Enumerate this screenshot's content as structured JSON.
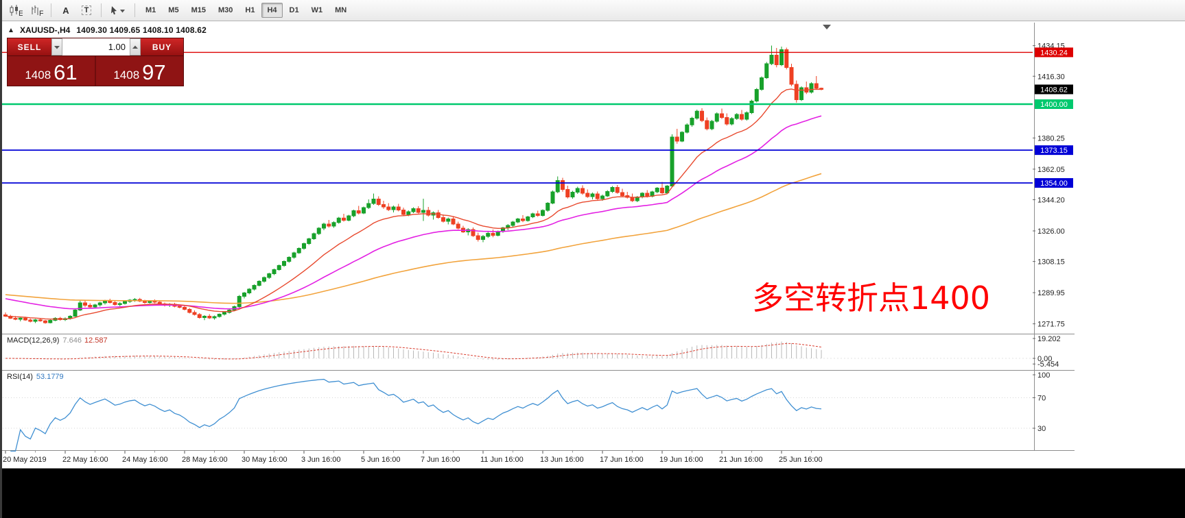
{
  "toolbar": {
    "icons": [
      {
        "name": "candlestick-chart-icon"
      },
      {
        "name": "bar-chart-grid-icon"
      },
      {
        "name": "text-annotation-icon"
      },
      {
        "name": "text-box-icon"
      },
      {
        "name": "draw-tools-icon"
      }
    ],
    "timeframes": [
      "M1",
      "M5",
      "M15",
      "M30",
      "H1",
      "H4",
      "D1",
      "W1",
      "MN"
    ],
    "active_timeframe": "H4"
  },
  "chart": {
    "title": {
      "symbol_period": "XAUUSD-,H4",
      "ohlc": "1409.30 1409.65 1408.10 1408.62"
    },
    "trade_panel": {
      "sell_label": "SELL",
      "buy_label": "BUY",
      "volume": "1.00",
      "sell_price": "1408",
      "sell_price_big": "61",
      "buy_price": "1408",
      "buy_price_big": "97"
    },
    "annotation": "多空转折点1400",
    "levels": [
      {
        "price": 1430.24,
        "label": "1430.24",
        "color": "#dd0000",
        "line_width": 1.4,
        "type": "resistance-line"
      },
      {
        "price": 1408.62,
        "label": "1408.62",
        "color": "#000000",
        "line_width": 0,
        "type": "current-price"
      },
      {
        "price": 1400.0,
        "label": "1400.00",
        "color": "#00c96e",
        "line_width": 2.4,
        "type": "pivot-line"
      },
      {
        "price": 1373.15,
        "label": "1373.15",
        "color": "#0000d6",
        "line_width": 1.8,
        "type": "support-line"
      },
      {
        "price": 1354.0,
        "label": "1354.00",
        "color": "#0000d6",
        "line_width": 1.8,
        "type": "support-line"
      }
    ]
  },
  "macd": {
    "label": "MACD(12,26,9)",
    "value_main": "7.646",
    "value_signal": "12.587",
    "scale": [
      {
        "v": 19.202,
        "t": "19.202"
      },
      {
        "v": 0,
        "t": "0.00"
      },
      {
        "v": -5.454,
        "t": "-5.454"
      }
    ]
  },
  "rsi": {
    "label": "RSI(14)",
    "value": "53.1779",
    "scale": [
      {
        "v": 100,
        "t": "100"
      },
      {
        "v": 70,
        "t": "70"
      },
      {
        "v": 30,
        "t": "30"
      }
    ]
  },
  "colors": {
    "up": "#18a12b",
    "down": "#ee4023",
    "ma_fast": "#e8492e",
    "ma_mid": "#e320e3",
    "ma_slow": "#f2a33c",
    "macd_hist": "#b8b8b8",
    "macd_signal": "#d93a2b",
    "rsi_line": "#3f8fd2",
    "annotation": "#ff0000"
  },
  "chart_data": {
    "type": "candlestick",
    "symbol": "XAUUSD-",
    "period": "H4",
    "y_axis_ticks": [
      1434.15,
      1416.3,
      1380.25,
      1362.05,
      1344.2,
      1326.0,
      1308.15,
      1289.95,
      1271.75
    ],
    "time_labels": [
      {
        "t": "20 May 2019",
        "bar": 0
      },
      {
        "t": "22 May 16:00",
        "bar": 12
      },
      {
        "t": "24 May 16:00",
        "bar": 24
      },
      {
        "t": "28 May 16:00",
        "bar": 36
      },
      {
        "t": "30 May 16:00",
        "bar": 48
      },
      {
        "t": "3 Jun 16:00",
        "bar": 60
      },
      {
        "t": "5 Jun 16:00",
        "bar": 72
      },
      {
        "t": "7 Jun 16:00",
        "bar": 84
      },
      {
        "t": "11 Jun 16:00",
        "bar": 96
      },
      {
        "t": "13 Jun 16:00",
        "bar": 108
      },
      {
        "t": "17 Jun 16:00",
        "bar": 120
      },
      {
        "t": "19 Jun 16:00",
        "bar": 132
      },
      {
        "t": "21 Jun 16:00",
        "bar": 144
      },
      {
        "t": "25 Jun 16:00",
        "bar": 156
      }
    ],
    "candles": [
      [
        1277.0,
        1278.4,
        1275.8,
        1276.2
      ],
      [
        1276.2,
        1277.0,
        1274.6,
        1275.0
      ],
      [
        1275.0,
        1276.3,
        1273.9,
        1274.4
      ],
      [
        1274.4,
        1275.5,
        1273.2,
        1275.1
      ],
      [
        1275.1,
        1275.9,
        1273.5,
        1274.0
      ],
      [
        1274.0,
        1274.8,
        1272.6,
        1273.2
      ],
      [
        1273.2,
        1274.6,
        1272.2,
        1274.1
      ],
      [
        1274.1,
        1275.2,
        1273.0,
        1273.5
      ],
      [
        1273.5,
        1274.0,
        1271.8,
        1272.4
      ],
      [
        1272.4,
        1274.3,
        1272.0,
        1273.8
      ],
      [
        1273.8,
        1275.6,
        1273.3,
        1275.0
      ],
      [
        1275.0,
        1275.8,
        1273.6,
        1274.2
      ],
      [
        1274.2,
        1275.5,
        1273.4,
        1274.8
      ],
      [
        1274.8,
        1276.8,
        1274.2,
        1276.2
      ],
      [
        1276.2,
        1280.5,
        1275.8,
        1279.8
      ],
      [
        1279.8,
        1285.2,
        1279.2,
        1284.0
      ],
      [
        1284.0,
        1285.6,
        1281.5,
        1282.6
      ],
      [
        1282.6,
        1283.8,
        1280.9,
        1281.6
      ],
      [
        1281.6,
        1283.4,
        1280.6,
        1282.8
      ],
      [
        1282.8,
        1284.6,
        1281.8,
        1284.0
      ],
      [
        1284.0,
        1285.8,
        1283.0,
        1285.2
      ],
      [
        1285.2,
        1286.4,
        1283.6,
        1284.2
      ],
      [
        1284.2,
        1285.0,
        1282.4,
        1283.0
      ],
      [
        1283.0,
        1284.4,
        1282.0,
        1283.6
      ],
      [
        1283.6,
        1285.4,
        1283.0,
        1284.8
      ],
      [
        1284.8,
        1286.2,
        1284.0,
        1285.6
      ],
      [
        1285.6,
        1286.8,
        1284.6,
        1286.0
      ],
      [
        1286.0,
        1286.9,
        1284.4,
        1285.0
      ],
      [
        1285.0,
        1285.8,
        1283.4,
        1284.2
      ],
      [
        1284.2,
        1285.6,
        1283.6,
        1285.0
      ],
      [
        1285.0,
        1286.0,
        1283.8,
        1284.4
      ],
      [
        1284.4,
        1285.2,
        1282.8,
        1283.4
      ],
      [
        1283.4,
        1284.2,
        1281.9,
        1282.6
      ],
      [
        1282.6,
        1283.8,
        1281.6,
        1283.2
      ],
      [
        1283.2,
        1284.0,
        1281.4,
        1282.0
      ],
      [
        1282.0,
        1283.0,
        1280.8,
        1281.4
      ],
      [
        1281.4,
        1282.2,
        1279.6,
        1280.2
      ],
      [
        1280.2,
        1281.0,
        1277.8,
        1278.4
      ],
      [
        1278.4,
        1279.6,
        1276.6,
        1277.2
      ],
      [
        1277.2,
        1278.0,
        1274.8,
        1275.4
      ],
      [
        1275.4,
        1276.8,
        1273.9,
        1276.2
      ],
      [
        1276.2,
        1277.4,
        1274.6,
        1275.2
      ],
      [
        1275.2,
        1276.6,
        1274.2,
        1276.0
      ],
      [
        1276.0,
        1277.8,
        1275.4,
        1277.4
      ],
      [
        1277.4,
        1279.0,
        1276.6,
        1278.4
      ],
      [
        1278.4,
        1280.2,
        1277.8,
        1279.8
      ],
      [
        1279.8,
        1282.4,
        1279.2,
        1281.8
      ],
      [
        1281.8,
        1288.6,
        1281.2,
        1287.8
      ],
      [
        1287.8,
        1290.4,
        1286.6,
        1289.8
      ],
      [
        1289.8,
        1292.6,
        1289.0,
        1292.0
      ],
      [
        1292.0,
        1294.8,
        1291.2,
        1294.2
      ],
      [
        1294.2,
        1297.2,
        1293.6,
        1296.6
      ],
      [
        1296.6,
        1299.4,
        1295.8,
        1298.8
      ],
      [
        1298.8,
        1301.6,
        1298.0,
        1301.0
      ],
      [
        1301.0,
        1304.0,
        1300.2,
        1303.4
      ],
      [
        1303.4,
        1306.4,
        1302.8,
        1305.8
      ],
      [
        1305.8,
        1308.8,
        1305.0,
        1308.2
      ],
      [
        1308.2,
        1311.2,
        1307.4,
        1310.6
      ],
      [
        1310.6,
        1313.8,
        1309.8,
        1313.2
      ],
      [
        1313.2,
        1316.4,
        1312.6,
        1315.8
      ],
      [
        1315.8,
        1319.2,
        1315.0,
        1318.6
      ],
      [
        1318.6,
        1322.0,
        1317.8,
        1321.4
      ],
      [
        1321.4,
        1325.0,
        1320.8,
        1324.4
      ],
      [
        1324.4,
        1328.2,
        1323.6,
        1327.6
      ],
      [
        1327.6,
        1330.8,
        1326.4,
        1330.0
      ],
      [
        1330.0,
        1332.4,
        1327.9,
        1328.8
      ],
      [
        1328.8,
        1331.6,
        1327.8,
        1330.9
      ],
      [
        1330.9,
        1334.2,
        1330.2,
        1333.5
      ],
      [
        1333.5,
        1336.0,
        1331.4,
        1332.2
      ],
      [
        1332.2,
        1335.4,
        1331.6,
        1334.8
      ],
      [
        1334.8,
        1338.4,
        1334.0,
        1337.8
      ],
      [
        1337.8,
        1340.6,
        1335.6,
        1336.4
      ],
      [
        1336.4,
        1340.2,
        1335.8,
        1339.6
      ],
      [
        1339.6,
        1344.4,
        1338.8,
        1342.0
      ],
      [
        1342.0,
        1347.8,
        1341.2,
        1344.6
      ],
      [
        1344.6,
        1346.2,
        1340.6,
        1341.4
      ],
      [
        1341.4,
        1343.6,
        1338.9,
        1340.0
      ],
      [
        1340.0,
        1342.2,
        1337.6,
        1338.4
      ],
      [
        1338.4,
        1340.8,
        1336.8,
        1340.0
      ],
      [
        1340.0,
        1341.8,
        1337.4,
        1338.2
      ],
      [
        1338.2,
        1339.6,
        1334.9,
        1335.6
      ],
      [
        1335.6,
        1338.0,
        1334.6,
        1337.2
      ],
      [
        1337.2,
        1339.8,
        1336.4,
        1339.0
      ],
      [
        1339.0,
        1340.4,
        1336.1,
        1336.8
      ],
      [
        1336.8,
        1344.8,
        1331.8,
        1338.0
      ],
      [
        1338.0,
        1340.0,
        1334.4,
        1335.2
      ],
      [
        1335.2,
        1337.4,
        1332.6,
        1336.6
      ],
      [
        1336.6,
        1338.2,
        1333.1,
        1333.8
      ],
      [
        1333.8,
        1335.6,
        1330.9,
        1331.6
      ],
      [
        1331.6,
        1333.8,
        1329.8,
        1333.0
      ],
      [
        1333.0,
        1334.2,
        1329.4,
        1330.0
      ],
      [
        1330.0,
        1331.4,
        1326.9,
        1327.6
      ],
      [
        1327.6,
        1329.0,
        1324.8,
        1325.4
      ],
      [
        1325.4,
        1327.6,
        1323.4,
        1326.8
      ],
      [
        1326.8,
        1328.0,
        1322.5,
        1323.2
      ],
      [
        1323.2,
        1325.0,
        1319.8,
        1321.0
      ],
      [
        1321.0,
        1323.6,
        1319.4,
        1322.8
      ],
      [
        1322.8,
        1325.4,
        1321.9,
        1324.6
      ],
      [
        1324.6,
        1326.8,
        1322.3,
        1323.4
      ],
      [
        1323.4,
        1326.2,
        1322.8,
        1325.6
      ],
      [
        1325.6,
        1328.4,
        1324.9,
        1327.8
      ],
      [
        1327.8,
        1330.0,
        1326.4,
        1329.2
      ],
      [
        1329.2,
        1331.8,
        1328.4,
        1331.2
      ],
      [
        1331.2,
        1333.6,
        1330.5,
        1333.0
      ],
      [
        1333.0,
        1335.2,
        1331.1,
        1332.0
      ],
      [
        1332.0,
        1334.8,
        1331.4,
        1334.2
      ],
      [
        1334.2,
        1336.6,
        1333.5,
        1336.0
      ],
      [
        1336.0,
        1337.8,
        1334.2,
        1335.0
      ],
      [
        1335.0,
        1338.6,
        1334.4,
        1338.0
      ],
      [
        1338.0,
        1342.8,
        1337.2,
        1342.2
      ],
      [
        1342.2,
        1349.6,
        1341.6,
        1348.8
      ],
      [
        1348.8,
        1357.8,
        1348.0,
        1355.4
      ],
      [
        1355.4,
        1357.0,
        1348.9,
        1350.2
      ],
      [
        1350.2,
        1352.4,
        1344.9,
        1345.8
      ],
      [
        1345.8,
        1349.4,
        1344.8,
        1348.6
      ],
      [
        1348.6,
        1351.8,
        1347.6,
        1350.8
      ],
      [
        1350.8,
        1352.6,
        1347.1,
        1348.0
      ],
      [
        1348.0,
        1350.2,
        1345.3,
        1346.0
      ],
      [
        1346.0,
        1348.4,
        1344.4,
        1347.6
      ],
      [
        1347.6,
        1349.0,
        1344.1,
        1344.8
      ],
      [
        1344.8,
        1347.2,
        1343.6,
        1346.4
      ],
      [
        1346.4,
        1349.8,
        1345.8,
        1349.0
      ],
      [
        1349.0,
        1352.2,
        1348.2,
        1351.4
      ],
      [
        1351.4,
        1352.8,
        1347.7,
        1348.4
      ],
      [
        1348.4,
        1350.6,
        1345.9,
        1346.6
      ],
      [
        1346.6,
        1348.8,
        1344.9,
        1345.6
      ],
      [
        1345.6,
        1347.8,
        1342.9,
        1343.6
      ],
      [
        1343.6,
        1346.4,
        1342.8,
        1345.8
      ],
      [
        1345.8,
        1348.6,
        1345.0,
        1348.0
      ],
      [
        1348.0,
        1349.8,
        1345.5,
        1346.2
      ],
      [
        1346.2,
        1349.4,
        1345.6,
        1348.8
      ],
      [
        1348.8,
        1351.6,
        1348.0,
        1351.0
      ],
      [
        1351.0,
        1354.6,
        1347.5,
        1348.2
      ],
      [
        1348.2,
        1352.8,
        1347.6,
        1352.2
      ],
      [
        1352.2,
        1382.4,
        1351.6,
        1380.8
      ],
      [
        1380.8,
        1385.6,
        1376.9,
        1378.4
      ],
      [
        1378.4,
        1384.2,
        1377.8,
        1383.6
      ],
      [
        1383.6,
        1388.8,
        1382.9,
        1387.9
      ],
      [
        1387.9,
        1392.6,
        1386.8,
        1391.8
      ],
      [
        1391.8,
        1396.8,
        1390.9,
        1395.9
      ],
      [
        1395.9,
        1397.6,
        1389.5,
        1390.4
      ],
      [
        1390.4,
        1392.2,
        1384.7,
        1385.6
      ],
      [
        1385.6,
        1390.8,
        1384.8,
        1390.0
      ],
      [
        1390.0,
        1395.2,
        1389.2,
        1394.4
      ],
      [
        1394.4,
        1397.4,
        1391.3,
        1392.2
      ],
      [
        1392.2,
        1394.6,
        1387.5,
        1388.4
      ],
      [
        1388.4,
        1392.4,
        1387.6,
        1391.6
      ],
      [
        1391.6,
        1394.8,
        1390.8,
        1394.0
      ],
      [
        1394.0,
        1396.6,
        1390.3,
        1391.2
      ],
      [
        1391.2,
        1395.8,
        1390.4,
        1395.0
      ],
      [
        1395.0,
        1402.6,
        1394.2,
        1401.8
      ],
      [
        1401.8,
        1409.4,
        1401.0,
        1408.6
      ],
      [
        1408.6,
        1416.2,
        1407.8,
        1415.4
      ],
      [
        1415.4,
        1424.6,
        1414.7,
        1423.6
      ],
      [
        1423.6,
        1434.2,
        1422.8,
        1428.6
      ],
      [
        1428.6,
        1432.8,
        1421.5,
        1423.0
      ],
      [
        1423.0,
        1433.6,
        1422.2,
        1431.8
      ],
      [
        1431.8,
        1433.0,
        1420.3,
        1421.4
      ],
      [
        1421.4,
        1423.6,
        1410.5,
        1411.6
      ],
      [
        1411.6,
        1413.8,
        1400.9,
        1402.6
      ],
      [
        1402.6,
        1410.4,
        1401.8,
        1409.6
      ],
      [
        1409.6,
        1413.2,
        1405.9,
        1407.0
      ],
      [
        1407.0,
        1412.8,
        1406.2,
        1412.0
      ],
      [
        1412.0,
        1416.4,
        1408.6,
        1409.3
      ],
      [
        1409.3,
        1409.65,
        1408.1,
        1408.62
      ]
    ]
  }
}
